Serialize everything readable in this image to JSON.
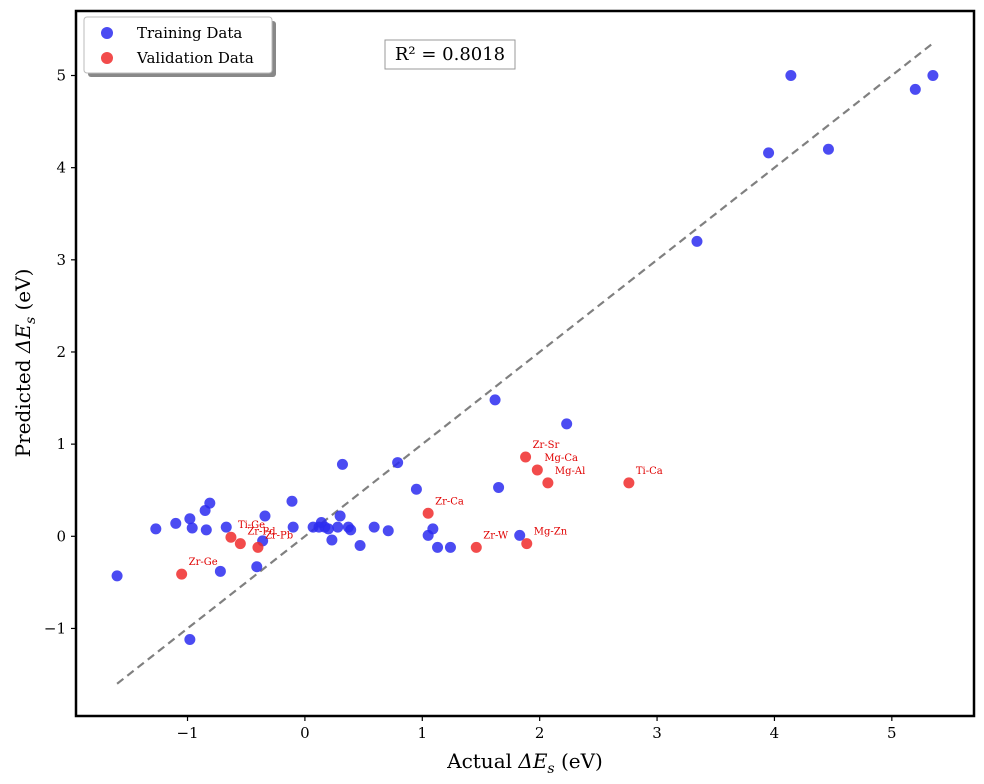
{
  "chart_data": {
    "type": "scatter",
    "xlabel_prefix": "Actual ",
    "xlabel_symbol": "ΔE",
    "xlabel_sub": "s",
    "xlabel_suffix": " (eV)",
    "ylabel_prefix": "Predicted ",
    "ylabel_symbol": "ΔE",
    "ylabel_sub": "s",
    "ylabel_suffix": " (eV)",
    "xlim": [
      -1.95,
      5.7
    ],
    "ylim": [
      -1.95,
      5.7
    ],
    "xticks": [
      -1,
      0,
      1,
      2,
      3,
      4,
      5
    ],
    "yticks": [
      -1,
      0,
      1,
      2,
      3,
      4,
      5
    ],
    "tick_labels": [
      "−1",
      "0",
      "1",
      "2",
      "3",
      "4",
      "5"
    ],
    "grid": false,
    "legend_position": "top-left",
    "annotation": "R² = 0.8018",
    "diagonal": {
      "from": [
        -1.6,
        -1.6
      ],
      "to": [
        5.35,
        5.35
      ],
      "color": "#808080"
    },
    "series": [
      {
        "name": "Training Data",
        "color": "#2b2bf0",
        "points": [
          [
            -1.6,
            -0.43
          ],
          [
            -1.27,
            0.08
          ],
          [
            -1.1,
            0.14
          ],
          [
            -0.98,
            0.19
          ],
          [
            -0.96,
            0.09
          ],
          [
            -0.85,
            0.28
          ],
          [
            -0.84,
            0.07
          ],
          [
            -0.81,
            0.36
          ],
          [
            -0.72,
            -0.38
          ],
          [
            -0.67,
            0.1
          ],
          [
            -0.41,
            -0.33
          ],
          [
            -0.36,
            -0.05
          ],
          [
            -0.34,
            0.22
          ],
          [
            -0.98,
            -1.12
          ],
          [
            -0.11,
            0.38
          ],
          [
            -0.1,
            0.1
          ],
          [
            0.07,
            0.1
          ],
          [
            0.12,
            0.1
          ],
          [
            0.14,
            0.15
          ],
          [
            0.17,
            0.1
          ],
          [
            0.2,
            0.08
          ],
          [
            0.23,
            -0.04
          ],
          [
            0.28,
            0.1
          ],
          [
            0.3,
            0.22
          ],
          [
            0.32,
            0.78
          ],
          [
            0.37,
            0.1
          ],
          [
            0.39,
            0.07
          ],
          [
            0.47,
            -0.1
          ],
          [
            0.59,
            0.1
          ],
          [
            0.71,
            0.06
          ],
          [
            0.79,
            0.8
          ],
          [
            0.95,
            0.51
          ],
          [
            1.05,
            0.01
          ],
          [
            1.09,
            0.08
          ],
          [
            1.13,
            -0.12
          ],
          [
            1.24,
            -0.12
          ],
          [
            1.62,
            1.48
          ],
          [
            1.65,
            0.53
          ],
          [
            1.83,
            0.01
          ],
          [
            2.23,
            1.22
          ],
          [
            3.34,
            3.2
          ],
          [
            3.95,
            4.16
          ],
          [
            4.14,
            5.0
          ],
          [
            4.46,
            4.2
          ],
          [
            5.2,
            4.85
          ],
          [
            5.35,
            5.0
          ]
        ]
      },
      {
        "name": "Validation Data",
        "color": "#f02b2b",
        "points": [
          {
            "x": -1.05,
            "y": -0.41,
            "label": "Zr-Ge"
          },
          {
            "x": -0.63,
            "y": -0.01,
            "label": "Ti-Ge"
          },
          {
            "x": -0.55,
            "y": -0.08,
            "label": "Zr-Pd"
          },
          {
            "x": -0.4,
            "y": -0.12,
            "label": "Zr-Pb"
          },
          {
            "x": 1.05,
            "y": 0.25,
            "label": "Zr-Ca"
          },
          {
            "x": 1.46,
            "y": -0.12,
            "label": "Zr-W"
          },
          {
            "x": 1.88,
            "y": 0.86,
            "label": "Zr-Sr"
          },
          {
            "x": 1.89,
            "y": -0.08,
            "label": "Mg-Zn"
          },
          {
            "x": 1.98,
            "y": 0.72,
            "label": "Mg-Ca"
          },
          {
            "x": 2.07,
            "y": 0.58,
            "label": "Mg-Al"
          },
          {
            "x": 2.76,
            "y": 0.58,
            "label": "Ti-Ca"
          }
        ]
      }
    ]
  }
}
